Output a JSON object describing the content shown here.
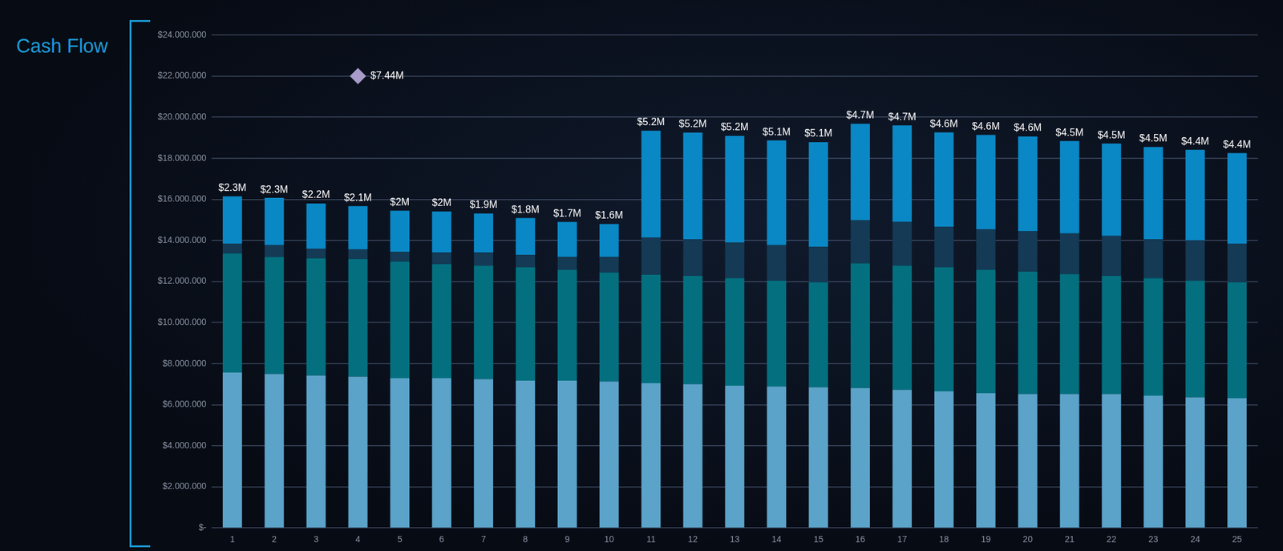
{
  "chart_data": {
    "type": "bar",
    "title": "Cash Flow",
    "categories": [
      "1",
      "2",
      "3",
      "4",
      "5",
      "6",
      "7",
      "8",
      "9",
      "10",
      "11",
      "12",
      "13",
      "14",
      "15",
      "16",
      "17",
      "18",
      "19",
      "20",
      "21",
      "22",
      "23",
      "24",
      "25"
    ],
    "stacked": true,
    "grid": true,
    "series": [
      {
        "color": "#5ba3c9",
        "values": [
          7570000,
          7500000,
          7420000,
          7370000,
          7290000,
          7290000,
          7250000,
          7170000,
          7170000,
          7130000,
          7050000,
          7000000,
          6930000,
          6890000,
          6850000,
          6810000,
          6730000,
          6650000,
          6560000,
          6520000,
          6520000,
          6520000,
          6440000,
          6360000,
          6320000
        ]
      },
      {
        "color": "#04707f",
        "values": [
          5800000,
          5700000,
          5710000,
          5720000,
          5680000,
          5560000,
          5520000,
          5520000,
          5400000,
          5310000,
          5270000,
          5280000,
          5230000,
          5150000,
          5110000,
          6080000,
          6040000,
          6040000,
          6010000,
          5960000,
          5840000,
          5760000,
          5720000,
          5680000,
          5640000
        ]
      },
      {
        "color": "#143a55",
        "values": [
          480000,
          570000,
          470000,
          480000,
          480000,
          560000,
          640000,
          600000,
          630000,
          760000,
          1820000,
          1770000,
          1730000,
          1730000,
          1730000,
          2090000,
          2130000,
          1970000,
          1970000,
          1980000,
          1980000,
          1940000,
          1890000,
          1970000,
          1890000
        ]
      },
      {
        "color": "#0a88c6",
        "data_labels": true,
        "values": [
          2300000,
          2300000,
          2200000,
          2100000,
          2000000,
          2000000,
          1900000,
          1800000,
          1700000,
          1600000,
          5200000,
          5200000,
          5200000,
          5100000,
          5100000,
          4700000,
          4700000,
          4600000,
          4600000,
          4600000,
          4500000,
          4500000,
          4500000,
          4400000,
          4400000
        ],
        "value_labels": [
          "$2.3M",
          "$2.3M",
          "$2.2M",
          "$2.1M",
          "$2M",
          "$2M",
          "$1.9M",
          "$1.8M",
          "$1.7M",
          "$1.6M",
          "$5.2M",
          "$5.2M",
          "$5.2M",
          "$5.1M",
          "$5.1M",
          "$4.7M",
          "$4.7M",
          "$4.6M",
          "$4.6M",
          "$4.6M",
          "$4.5M",
          "$4.5M",
          "$4.5M",
          "$4.4M",
          "$4.4M"
        ]
      }
    ],
    "ylim": [
      0,
      24000000
    ],
    "yticks": [
      {
        "value": 0,
        "label": "$-"
      },
      {
        "value": 2000000,
        "label": "$2.000.000"
      },
      {
        "value": 4000000,
        "label": "$4.000.000"
      },
      {
        "value": 6000000,
        "label": "$6.000.000"
      },
      {
        "value": 8000000,
        "label": "$8.000.000"
      },
      {
        "value": 10000000,
        "label": "$10.000.000"
      },
      {
        "value": 12000000,
        "label": "$12.000.000"
      },
      {
        "value": 14000000,
        "label": "$14.000.000"
      },
      {
        "value": 16000000,
        "label": "$16.000.000"
      },
      {
        "value": 18000000,
        "label": "$18.000.000"
      },
      {
        "value": 20000000,
        "label": "$20.000.000"
      },
      {
        "value": 22000000,
        "label": "$22.000.000"
      },
      {
        "value": 24000000,
        "label": "$24.000.000"
      }
    ],
    "annotations": [
      {
        "text": "$7.44M",
        "x": "4",
        "y": 22000000,
        "marker": "diamond",
        "color": "#a89cc8"
      }
    ]
  }
}
